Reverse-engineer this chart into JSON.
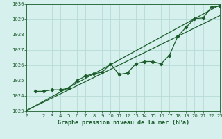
{
  "xlabel": "Graphe pression niveau de la mer (hPa)",
  "xlim": [
    0,
    23
  ],
  "ylim": [
    1023,
    1030
  ],
  "yticks": [
    1023,
    1024,
    1025,
    1026,
    1027,
    1028,
    1029,
    1030
  ],
  "xticks": [
    0,
    2,
    3,
    4,
    5,
    6,
    7,
    8,
    9,
    10,
    11,
    12,
    13,
    14,
    15,
    16,
    17,
    18,
    19,
    20,
    21,
    22,
    23
  ],
  "bg_color": "#d6f0ee",
  "grid_color": "#b8dbd8",
  "line_color": "#1a5c2a",
  "line1_x": [
    0,
    23
  ],
  "line1_y": [
    1023.05,
    1029.95
  ],
  "line2_x": [
    0,
    23
  ],
  "line2_y": [
    1023.05,
    1029.25
  ],
  "data_x": [
    1,
    2,
    3,
    4,
    5,
    6,
    7,
    8,
    9,
    10,
    11,
    12,
    13,
    14,
    15,
    16,
    17,
    18,
    19,
    20,
    21,
    22,
    23
  ],
  "data_y": [
    1024.3,
    1024.3,
    1024.4,
    1024.4,
    1024.5,
    1025.0,
    1025.3,
    1025.45,
    1025.55,
    1026.1,
    1025.4,
    1025.5,
    1026.1,
    1026.25,
    1026.25,
    1026.1,
    1026.65,
    1027.9,
    1028.5,
    1029.05,
    1029.1,
    1029.8,
    1029.88
  ],
  "marker": "D",
  "markersize": 2.2,
  "linewidth": 0.9,
  "tick_labelsize": 5.2,
  "xlabel_fontsize": 6.0
}
